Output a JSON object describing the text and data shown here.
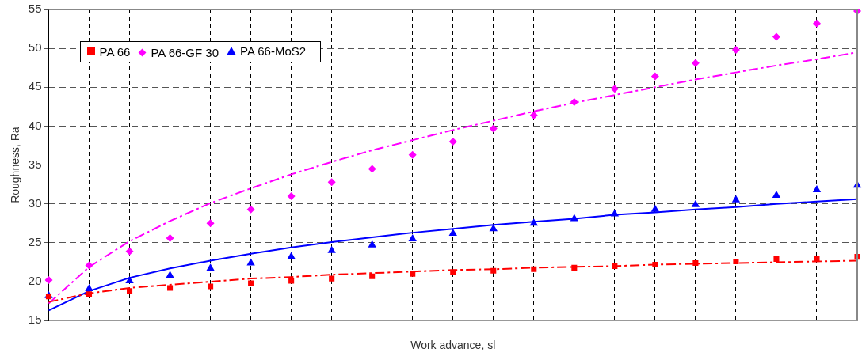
{
  "chart_data": {
    "type": "line",
    "xlabel": "Work advance, sl",
    "ylabel": "Roughness, Ra",
    "categories": [
      null,
      null,
      null,
      null,
      null,
      null,
      null,
      null,
      null,
      null,
      null,
      null,
      null,
      null,
      null,
      null,
      null,
      null,
      null,
      null,
      null
    ],
    "ylim": [
      15,
      55
    ],
    "yticks": [
      15,
      20,
      25,
      30,
      35,
      40,
      45,
      50,
      55
    ],
    "grid": true,
    "legend": "top left",
    "series": [
      {
        "name": "PA 66",
        "type": "scatter",
        "marker": "square",
        "color": "#ff0000",
        "values": [
          18.1,
          18.4,
          18.8,
          19.2,
          19.4,
          19.8,
          20.1,
          20.4,
          20.7,
          21.0,
          21.2,
          21.4,
          21.6,
          21.8,
          22.0,
          22.2,
          22.4,
          22.6,
          22.9,
          23.0,
          23.2
        ]
      },
      {
        "name": "PA 66-GF 30",
        "type": "scatter",
        "marker": "diamond",
        "color": "#ff00ff",
        "values": [
          20.2,
          22.1,
          23.9,
          25.6,
          27.5,
          29.3,
          31.0,
          32.8,
          34.5,
          36.3,
          38.0,
          39.7,
          41.4,
          43.1,
          44.8,
          46.4,
          48.1,
          49.8,
          51.5,
          53.2,
          54.8
        ]
      },
      {
        "name": "PA 66-MoS2",
        "type": "scatter",
        "marker": "triangle",
        "color": "#0000ff",
        "values": [
          18.2,
          19.1,
          20.1,
          20.8,
          21.7,
          22.4,
          23.2,
          24.0,
          24.7,
          25.5,
          26.2,
          26.8,
          27.5,
          28.1,
          28.7,
          29.3,
          29.9,
          30.5,
          31.1,
          31.8,
          32.4
        ]
      },
      {
        "type": "line",
        "marker": "none",
        "line_style": "dashed",
        "color": "#ff0000",
        "values": [
          17.4,
          18.5,
          19.2,
          19.6,
          20.0,
          20.4,
          20.6,
          20.9,
          21.1,
          21.3,
          21.5,
          21.6,
          21.8,
          21.9,
          22.0,
          22.2,
          22.3,
          22.4,
          22.5,
          22.6,
          22.7
        ]
      },
      {
        "type": "line",
        "marker": "none",
        "line_style": "dashed",
        "color": "#ff00ff",
        "values": [
          17.2,
          21.9,
          25.2,
          27.8,
          30.1,
          32.0,
          33.8,
          35.4,
          36.9,
          38.2,
          39.5,
          40.7,
          41.9,
          43.0,
          44.0,
          45.0,
          46.0,
          46.9,
          47.8,
          48.6,
          49.5
        ]
      },
      {
        "type": "line",
        "marker": "none",
        "line_style": "solid",
        "color": "#0000ff",
        "values": [
          16.3,
          18.8,
          20.5,
          21.7,
          22.7,
          23.6,
          24.4,
          25.1,
          25.7,
          26.3,
          26.8,
          27.3,
          27.7,
          28.1,
          28.6,
          28.9,
          29.3,
          29.6,
          30.0,
          30.3,
          30.6
        ]
      }
    ]
  }
}
